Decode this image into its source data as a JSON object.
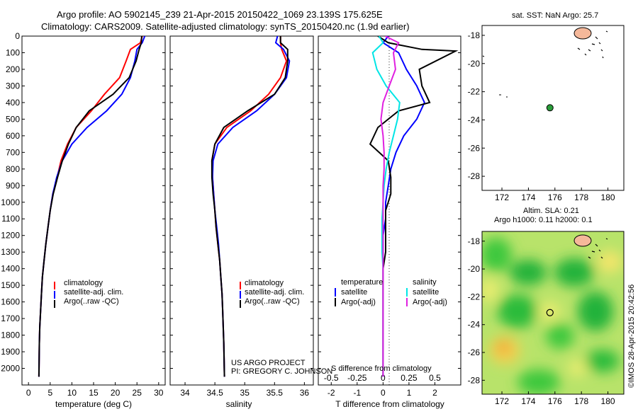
{
  "header": {
    "line1": "Argo profile: AO 5902145_239 21-Apr-2015 20150422_1069 23.139S 175.625E",
    "line2": "Climatology: CARS2009. Satellite-adjusted climatology: synTS_20150420.nc (1.9d earlier)"
  },
  "credits": {
    "project": "US ARGO PROJECT",
    "pi": "PI: GREGORY C. JOHNSON",
    "imos": "©IMOS 28-Apr-2015 20:42:56"
  },
  "colors": {
    "climatology": "#ff0000",
    "satellite": "#0000ff",
    "argo": "#000000",
    "sal_satellite": "#00e5e5",
    "sal_argo": "#e020e0",
    "land": "#f5b89a"
  },
  "chart_data": [
    {
      "id": "temperature",
      "type": "line",
      "xlabel": "temperature (deg C)",
      "ylabel": "",
      "xlim": [
        -1.5,
        31.5
      ],
      "ylim": [
        2100,
        0
      ],
      "xticks": [
        0,
        5,
        10,
        15,
        20,
        25,
        30
      ],
      "yticks": [
        0,
        100,
        200,
        300,
        400,
        500,
        600,
        700,
        800,
        900,
        1000,
        1100,
        1200,
        1300,
        1400,
        1500,
        1600,
        1700,
        1800,
        1900,
        2000
      ],
      "legend": [
        "climatology",
        "satellite-adj. clim.",
        "Argo(..raw -QC)"
      ],
      "series": [
        {
          "name": "climatology",
          "color": "#ff0000",
          "x": [
            26.2,
            25.8,
            23.5,
            22.5,
            21.0,
            17.5,
            14.5,
            11.0,
            9.0,
            7.5,
            6.6,
            5.6,
            5.0,
            4.5,
            4.0,
            3.6,
            3.2,
            3.0,
            2.8,
            2.6,
            2.5,
            2.4
          ],
          "y": [
            0,
            40,
            80,
            150,
            250,
            350,
            450,
            550,
            650,
            750,
            850,
            950,
            1050,
            1150,
            1250,
            1350,
            1450,
            1550,
            1650,
            1750,
            1850,
            2050
          ]
        },
        {
          "name": "satellite-adj. clim.",
          "color": "#0000ff",
          "x": [
            26.8,
            26.2,
            25.0,
            24.5,
            23.5,
            21.5,
            18.0,
            13.5,
            10.0,
            7.8,
            6.5,
            5.6,
            5.0,
            4.5,
            4.0,
            3.6,
            3.2,
            3.0,
            2.8,
            2.6,
            2.5,
            2.4
          ],
          "y": [
            0,
            40,
            80,
            150,
            250,
            350,
            450,
            550,
            650,
            750,
            850,
            950,
            1050,
            1150,
            1250,
            1350,
            1450,
            1550,
            1650,
            1750,
            1850,
            2050
          ]
        },
        {
          "name": "Argo(..raw -QC)",
          "color": "#000000",
          "x": [
            26.1,
            26.0,
            25.5,
            24.8,
            23.2,
            19.5,
            14.0,
            11.0,
            9.2,
            7.8,
            6.7,
            5.7,
            5.0,
            4.5,
            4.0,
            3.6,
            3.2,
            3.0,
            2.8,
            2.6,
            2.5,
            2.4
          ],
          "y": [
            0,
            40,
            80,
            150,
            250,
            350,
            450,
            550,
            650,
            750,
            850,
            950,
            1050,
            1150,
            1250,
            1350,
            1450,
            1550,
            1650,
            1750,
            1850,
            2050
          ]
        }
      ]
    },
    {
      "id": "salinity",
      "type": "line",
      "xlabel": "salinity",
      "ylabel": "",
      "xlim": [
        33.75,
        36.15
      ],
      "ylim": [
        2100,
        0
      ],
      "xticks": [
        34,
        34.5,
        35,
        35.5,
        36
      ],
      "xticklabels": [
        "34",
        "34.5",
        "35",
        "35.5",
        "36"
      ],
      "legend": [
        "climatology",
        "satellite-adj. clim.",
        "Argo(..raw -QC)"
      ],
      "series": [
        {
          "name": "climatology",
          "color": "#ff0000",
          "x": [
            35.6,
            35.6,
            35.62,
            35.7,
            35.6,
            35.4,
            35.1,
            34.7,
            34.5,
            34.45,
            34.46,
            34.48,
            34.5,
            34.52,
            34.55,
            34.58,
            34.6,
            34.62,
            34.63,
            34.64,
            34.65,
            34.66
          ],
          "y": [
            0,
            40,
            80,
            150,
            250,
            350,
            450,
            550,
            650,
            750,
            850,
            950,
            1050,
            1150,
            1250,
            1350,
            1450,
            1550,
            1650,
            1750,
            1850,
            2050
          ]
        },
        {
          "name": "satellite-adj. clim.",
          "color": "#0000ff",
          "x": [
            35.55,
            35.52,
            35.65,
            35.75,
            35.7,
            35.5,
            35.2,
            34.8,
            34.55,
            34.47,
            34.46,
            34.48,
            34.5,
            34.53,
            34.56,
            34.58,
            34.6,
            34.62,
            34.63,
            34.64,
            34.65,
            34.66
          ],
          "y": [
            0,
            40,
            80,
            150,
            250,
            350,
            450,
            550,
            650,
            750,
            850,
            950,
            1050,
            1150,
            1250,
            1350,
            1450,
            1550,
            1650,
            1750,
            1850,
            2050
          ]
        },
        {
          "name": "Argo(..raw -QC)",
          "color": "#000000",
          "x": [
            35.6,
            35.6,
            35.72,
            35.72,
            35.68,
            35.5,
            35.05,
            34.65,
            34.5,
            34.45,
            34.45,
            34.47,
            34.5,
            34.52,
            34.55,
            34.58,
            34.6,
            34.62,
            34.63,
            34.64,
            34.65,
            34.66
          ],
          "y": [
            0,
            40,
            80,
            150,
            250,
            350,
            450,
            550,
            650,
            750,
            850,
            950,
            1050,
            1150,
            1250,
            1350,
            1450,
            1550,
            1650,
            1750,
            1850,
            2050
          ]
        }
      ]
    },
    {
      "id": "difference",
      "type": "line",
      "xlabel": "T difference from climatology",
      "xlabel2": "S difference from climatology",
      "xlim": [
        -2.5,
        3.0
      ],
      "ylim": [
        2100,
        0
      ],
      "xticks": [
        -2,
        -1,
        0,
        1,
        2
      ],
      "xticks2": [
        -0.5,
        -0.25,
        0,
        0.25,
        0.5
      ],
      "xticklabels2": [
        "-0.5",
        "-0.25",
        "0",
        "0.25",
        "0.5"
      ],
      "legend_headers": [
        "temperature",
        "salinity"
      ],
      "legend": [
        "satellite",
        "Argo(-adj)",
        "satellite",
        "Argo(-adj)"
      ],
      "series": [
        {
          "name": "T satellite",
          "color": "#0000ff",
          "x": [
            0.2,
            0.0,
            0.6,
            0.9,
            1.3,
            1.6,
            1.3,
            0.8,
            0.5,
            0.3,
            0.2,
            0.1,
            0.1,
            0.0,
            0.0,
            0.0,
            0.0,
            0.0,
            0.0,
            0.0,
            0.0,
            0.0
          ],
          "y": [
            0,
            40,
            100,
            200,
            300,
            400,
            500,
            600,
            700,
            800,
            900,
            1000,
            1100,
            1200,
            1300,
            1400,
            1500,
            1600,
            1700,
            1800,
            1900,
            2050
          ]
        },
        {
          "name": "T Argo(-adj)",
          "color": "#000000",
          "x": [
            -0.2,
            0.2,
            1.5,
            2.8,
            1.4,
            1.5,
            1.8,
            0.6,
            -0.2,
            -0.5,
            0.2,
            0.3,
            0.3,
            0.1,
            0.1,
            0.1,
            0.0,
            0.0,
            0.0,
            0.0,
            0.0,
            0.0
          ],
          "y": [
            0,
            40,
            80,
            90,
            200,
            300,
            400,
            450,
            550,
            650,
            750,
            850,
            950,
            1050,
            1150,
            1300,
            1400,
            1500,
            1600,
            1700,
            1800,
            2050
          ]
        },
        {
          "name": "S satellite",
          "color": "#00e5e5",
          "x": [
            -0.04,
            0.0,
            -0.1,
            -0.06,
            0.03,
            0.16,
            0.14,
            0.1,
            0.06,
            0.03,
            0.01,
            0.0,
            -0.01,
            -0.01,
            -0.01,
            0.0,
            0.0,
            0.0,
            0.0,
            0.0,
            0.0,
            0.0
          ],
          "y": [
            0,
            40,
            100,
            200,
            300,
            400,
            500,
            600,
            700,
            800,
            900,
            1000,
            1100,
            1200,
            1300,
            1400,
            1500,
            1600,
            1700,
            1800,
            1900,
            2050
          ]
        },
        {
          "name": "S Argo(-adj)",
          "color": "#e020e0",
          "x": [
            0.02,
            0.15,
            0.1,
            0.12,
            0.06,
            0.0,
            -0.02,
            0.0,
            0.01,
            0.01,
            0.0,
            0.0,
            0.0,
            0.0,
            0.0,
            0.0,
            0.0,
            0.0,
            0.0,
            0.0,
            0.0,
            0.0
          ],
          "y": [
            0,
            40,
            100,
            200,
            300,
            400,
            500,
            600,
            700,
            800,
            900,
            1000,
            1100,
            1200,
            1300,
            1400,
            1500,
            1600,
            1700,
            1800,
            1900,
            2050
          ]
        }
      ]
    },
    {
      "id": "map-sst",
      "type": "scatter",
      "title": "sat. SST: NaN Argo: 25.7",
      "xlim": [
        170.5,
        181.2
      ],
      "ylim": [
        -29,
        -17.3
      ],
      "xticks": [
        172,
        174,
        176,
        178,
        180
      ],
      "yticks": [
        -18,
        -20,
        -22,
        -24,
        -26,
        -28
      ],
      "point": {
        "lon": 175.625,
        "lat": -23.139
      }
    },
    {
      "id": "map-sla",
      "type": "heatmap",
      "title": "Altim. SLA: 0.21",
      "subtitle": "Argo h1000: 0.11 h2000: 0.1",
      "xlim": [
        170.5,
        181.2
      ],
      "ylim": [
        -29,
        -17.3
      ],
      "xticks": [
        172,
        174,
        176,
        178,
        180
      ],
      "yticks": [
        -18,
        -20,
        -22,
        -24,
        -26,
        -28
      ],
      "point": {
        "lon": 175.625,
        "lat": -23.139
      }
    }
  ]
}
